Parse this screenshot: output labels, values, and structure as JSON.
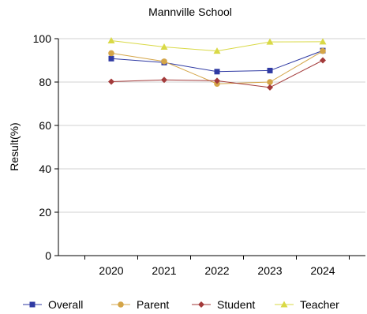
{
  "chart_data": {
    "type": "line",
    "title": "Mannville School",
    "xlabel": "",
    "ylabel": "Result(%)",
    "categories": [
      "2020",
      "2021",
      "2022",
      "2023",
      "2024"
    ],
    "ylim": [
      0,
      100
    ],
    "yticks": [
      0,
      20,
      40,
      60,
      80,
      100
    ],
    "grid": true,
    "legend_position": "bottom",
    "series": [
      {
        "name": "Overall",
        "color": "#2f3aa3",
        "marker": "square",
        "values": [
          90.8,
          89.0,
          84.8,
          85.3,
          94.5
        ]
      },
      {
        "name": "Parent",
        "color": "#d4a548",
        "marker": "circle",
        "values": [
          93.3,
          89.5,
          79.2,
          80.0,
          94.3
        ]
      },
      {
        "name": "Student",
        "color": "#a33a3a",
        "marker": "diamond",
        "values": [
          80.2,
          81.0,
          80.6,
          77.5,
          90.0
        ]
      },
      {
        "name": "Teacher",
        "color": "#d9d946",
        "marker": "triangle",
        "values": [
          99.1,
          96.2,
          94.3,
          98.5,
          98.6
        ]
      }
    ]
  }
}
